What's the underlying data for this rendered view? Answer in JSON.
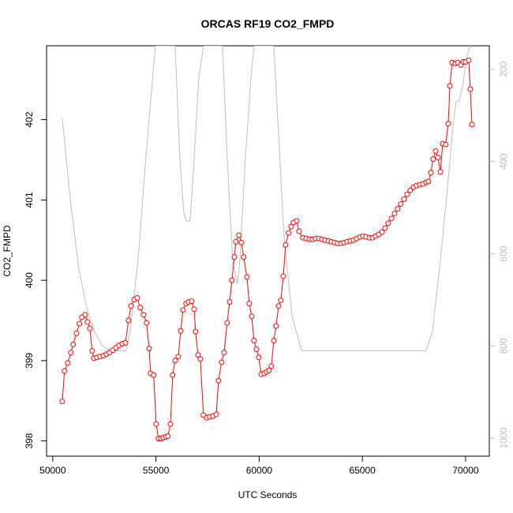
{
  "chart_data": {
    "type": "line",
    "title": "ORCAS RF19 CO2_FMPD",
    "xlabel": "UTC Seconds",
    "ylabel": "CO2_FMPD",
    "xlim": [
      49700,
      71150
    ],
    "ylim": [
      397.81,
      402.92
    ],
    "y2lim": [
      1039,
      149
    ],
    "xticks": [
      50000,
      55000,
      60000,
      65000,
      70000
    ],
    "yticks": [
      398,
      399,
      400,
      401,
      402
    ],
    "y2ticks": [
      200,
      400,
      600,
      800,
      1000
    ],
    "series": [
      {
        "color": "#ff0000",
        "markers": true,
        "x": [
          50460,
          50570,
          50730,
          50880,
          50990,
          51150,
          51300,
          51410,
          51570,
          51680,
          51800,
          51910,
          51990,
          52140,
          52290,
          52450,
          52600,
          52750,
          52910,
          53060,
          53210,
          53370,
          53520,
          53670,
          53790,
          53940,
          54090,
          54240,
          54400,
          54550,
          54670,
          54740,
          54890,
          55010,
          55120,
          55240,
          55350,
          55470,
          55580,
          55700,
          55810,
          55930,
          56080,
          56200,
          56310,
          56460,
          56580,
          56730,
          56850,
          56920,
          57040,
          57150,
          57300,
          57460,
          57610,
          57760,
          57920,
          58030,
          58180,
          58300,
          58450,
          58570,
          58680,
          58800,
          58870,
          59020,
          59140,
          59250,
          59410,
          59520,
          59640,
          59750,
          59870,
          59980,
          60100,
          60250,
          60360,
          60480,
          60590,
          60710,
          60820,
          60940,
          61050,
          61170,
          61280,
          61430,
          61550,
          61660,
          61820,
          61930,
          62120,
          62280,
          62430,
          62580,
          62730,
          62890,
          63040,
          63190,
          63350,
          63500,
          63650,
          63800,
          63960,
          64110,
          64260,
          64420,
          64570,
          64720,
          64880,
          65030,
          65180,
          65340,
          65490,
          65640,
          65790,
          65950,
          66100,
          66250,
          66410,
          66560,
          66710,
          66860,
          67020,
          67170,
          67320,
          67480,
          67630,
          67780,
          67930,
          68090,
          68200,
          68320,
          68430,
          68550,
          68660,
          68780,
          68890,
          69040,
          69160,
          69240,
          69350,
          69500,
          69620,
          69770,
          69890,
          70000,
          70150,
          70230,
          70310
        ],
        "values": [
          398.49,
          398.87,
          398.97,
          399.1,
          399.2,
          399.34,
          399.46,
          399.54,
          399.57,
          399.48,
          399.4,
          399.12,
          399.03,
          399.04,
          399.05,
          399.06,
          399.08,
          399.1,
          399.13,
          399.16,
          399.19,
          399.21,
          399.22,
          399.5,
          399.68,
          399.76,
          399.78,
          399.66,
          399.57,
          399.47,
          399.15,
          398.84,
          398.82,
          398.21,
          398.03,
          398.03,
          398.04,
          398.05,
          398.06,
          398.21,
          398.82,
          399.0,
          399.05,
          399.37,
          399.63,
          399.71,
          399.73,
          399.74,
          399.64,
          399.36,
          399.07,
          399.02,
          398.32,
          398.29,
          398.3,
          398.31,
          398.33,
          398.75,
          398.98,
          399.1,
          399.47,
          399.73,
          400.0,
          400.29,
          400.48,
          400.56,
          400.47,
          400.29,
          400.04,
          399.71,
          399.55,
          399.25,
          399.14,
          399.04,
          398.83,
          398.84,
          398.86,
          398.88,
          398.93,
          399.25,
          399.43,
          399.68,
          399.75,
          400.05,
          400.44,
          400.59,
          400.67,
          400.72,
          400.74,
          400.61,
          400.53,
          400.52,
          400.51,
          400.51,
          400.52,
          400.52,
          400.51,
          400.5,
          400.49,
          400.48,
          400.47,
          400.46,
          400.46,
          400.47,
          400.48,
          400.49,
          400.5,
          400.52,
          400.54,
          400.55,
          400.54,
          400.53,
          400.53,
          400.55,
          400.57,
          400.6,
          400.65,
          400.71,
          400.77,
          400.83,
          400.89,
          400.95,
          401.01,
          401.07,
          401.12,
          401.16,
          401.18,
          401.19,
          401.2,
          401.22,
          401.23,
          401.34,
          401.51,
          401.61,
          401.53,
          401.35,
          401.7,
          401.69,
          401.95,
          402.42,
          402.71,
          402.7,
          402.71,
          402.68,
          402.72,
          402.72,
          402.74,
          402.38,
          401.94
        ]
      },
      {
        "color": "#bebebe",
        "axis": "y2",
        "markers": false,
        "x": [
          50459,
          50880,
          51262,
          51644,
          52027,
          52409,
          52792,
          53556,
          53748,
          54130,
          54512,
          54971,
          55927,
          56157,
          56348,
          56463,
          56654,
          56807,
          57075,
          57304,
          58222,
          58451,
          58719,
          58948,
          59063,
          59331,
          59598,
          59751,
          60707,
          60898,
          61205,
          61587,
          62046,
          68088,
          68394,
          68776,
          69082,
          69388,
          69541,
          69694,
          69847,
          70076,
          70229
        ],
        "values": [
          306,
          495,
          632,
          717,
          769,
          800,
          810,
          810,
          769,
          615,
          392,
          149,
          149,
          392,
          512,
          529,
          529,
          426,
          220,
          149,
          149,
          392,
          615,
          666,
          615,
          392,
          220,
          149,
          149,
          306,
          563,
          734,
          810,
          810,
          769,
          615,
          478,
          323,
          269,
          269,
          238,
          170,
          149
        ]
      }
    ]
  }
}
